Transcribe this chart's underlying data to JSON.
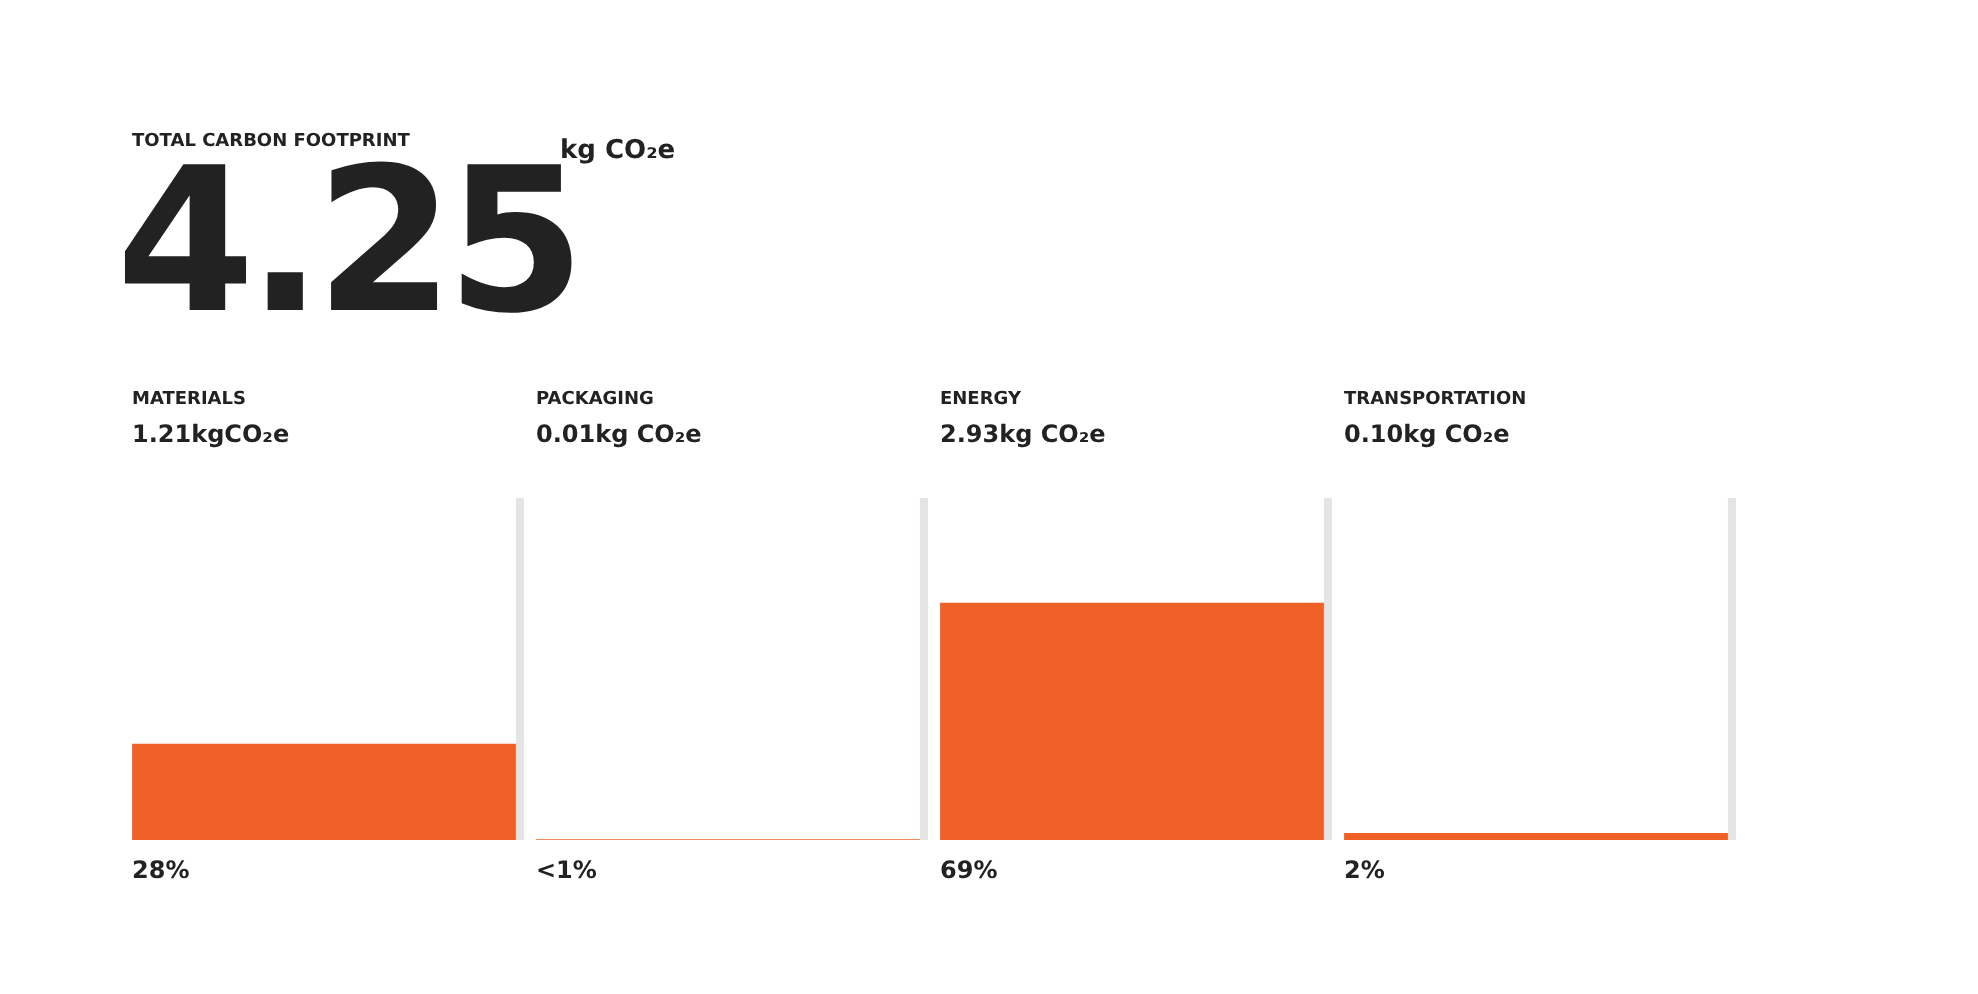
{
  "chart_data": {
    "type": "bar",
    "title": "TOTAL CARBON FOOTPRINT",
    "subtitle": "4.25",
    "categories": [
      "MATERIALS",
      "PACKAGING",
      "ENERGY",
      "TRANSPORTATION"
    ],
    "values": [
      28,
      0.2,
      69,
      2
    ],
    "value_labels": [
      "28%",
      "<1%",
      "69%",
      "2%"
    ],
    "color": "#f06127",
    "ylim": [
      0,
      100
    ],
    "tick_labels": "x",
    "annotations": [
      "kg CO₂e",
      "1.21kgCO₂e",
      "0.01kg CO₂e",
      "2.93kg CO₂e",
      "0.10kg CO₂e"
    ]
  }
}
